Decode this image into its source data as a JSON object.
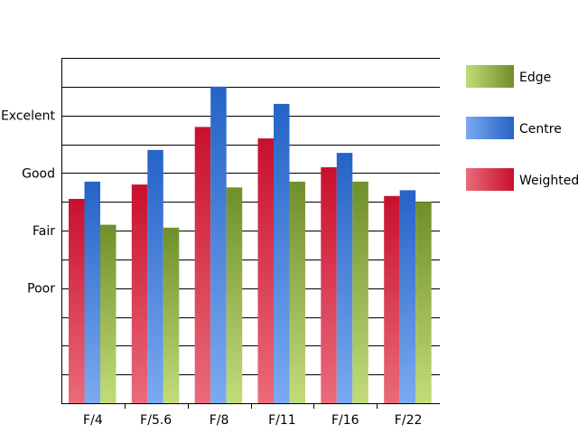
{
  "chart_data": {
    "type": "bar",
    "categories": [
      "F/4",
      "F/5.6",
      "F/8",
      "F/11",
      "F/16",
      "F/22"
    ],
    "series": [
      {
        "name": "Weighted",
        "values": [
          2.55,
          2.8,
          3.8,
          3.6,
          3.1,
          2.6
        ],
        "color": "#c8102e",
        "color_light": "#ea6b7a"
      },
      {
        "name": "Centre",
        "values": [
          2.85,
          3.4,
          4.5,
          4.2,
          3.35,
          2.7
        ],
        "color": "#2563c7",
        "color_light": "#7aaaf0"
      },
      {
        "name": "Edge",
        "values": [
          2.1,
          2.05,
          2.75,
          2.85,
          2.85,
          2.5
        ],
        "color": "#6f8f2a",
        "color_light": "#c2dc7a"
      }
    ],
    "yticks": [
      {
        "value": 1,
        "label": "Poor"
      },
      {
        "value": 2,
        "label": "Fair"
      },
      {
        "value": 3,
        "label": "Good"
      },
      {
        "value": 4,
        "label": "Excelent"
      }
    ],
    "ylim": [
      -1,
      5
    ],
    "ygrid_step": 0.5,
    "grid": true,
    "legend_position": "right",
    "legend_order": [
      "Edge",
      "Centre",
      "Weighted"
    ],
    "title": "",
    "xlabel": "",
    "ylabel": ""
  }
}
